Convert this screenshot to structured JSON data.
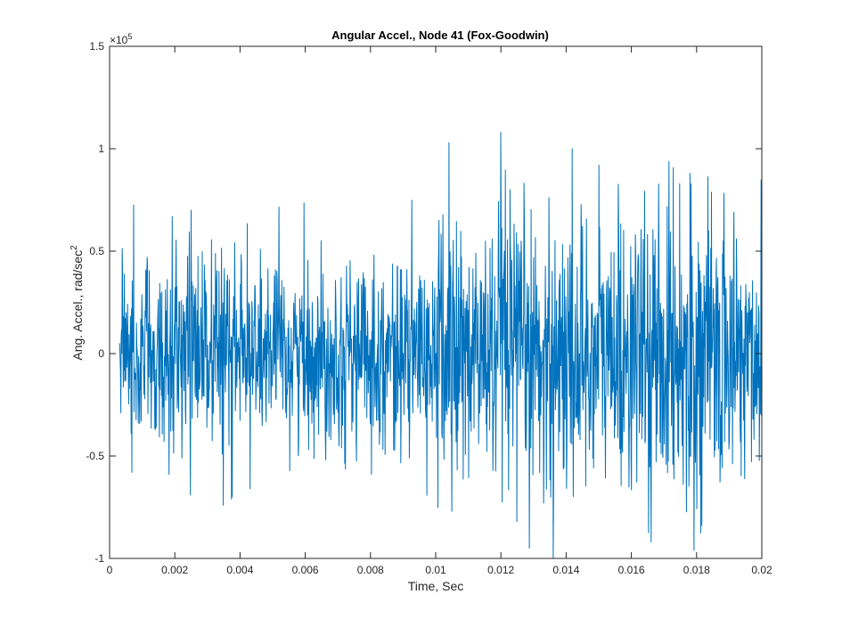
{
  "chart_data": {
    "type": "line",
    "title": "Angular Accel., Node 41 (Fox-Goodwin)",
    "xlabel": "Time, Sec",
    "ylabel_main": "Ang. Accel., rad/sec",
    "ylabel_superscript": "2",
    "xlim": [
      0,
      0.02
    ],
    "ylim": [
      -100000,
      150000
    ],
    "exponent_label": {
      "base": "×10",
      "power": "5"
    },
    "x_ticks": [
      {
        "value": 0,
        "label": "0"
      },
      {
        "value": 0.002,
        "label": "0.002"
      },
      {
        "value": 0.004,
        "label": "0.004"
      },
      {
        "value": 0.006,
        "label": "0.006"
      },
      {
        "value": 0.008,
        "label": "0.008"
      },
      {
        "value": 0.01,
        "label": "0.01"
      },
      {
        "value": 0.012,
        "label": "0.012"
      },
      {
        "value": 0.014,
        "label": "0.014"
      },
      {
        "value": 0.016,
        "label": "0.016"
      },
      {
        "value": 0.018,
        "label": "0.018"
      },
      {
        "value": 0.02,
        "label": "0.02"
      }
    ],
    "y_ticks": [
      {
        "value": -100000,
        "label": "-1"
      },
      {
        "value": -50000,
        "label": "-0.5"
      },
      {
        "value": 0,
        "label": "0"
      },
      {
        "value": 50000,
        "label": "0.5"
      },
      {
        "value": 100000,
        "label": "1"
      },
      {
        "value": 150000,
        "label": "1.5"
      }
    ],
    "grid": false,
    "series": [
      {
        "name": "Angular acceleration",
        "color": "#0072BD",
        "x_start": 0.0003,
        "x_end": 0.02,
        "point_count": 1800,
        "approx_rms": 22000,
        "approx_rms_late": 33000,
        "peaks": [
          {
            "x": 0.0004,
            "y": 38000
          },
          {
            "x": 0.0007,
            "y": -58000
          },
          {
            "x": 0.0025,
            "y": 70000
          },
          {
            "x": 0.0025,
            "y": -69000
          },
          {
            "x": 0.0043,
            "y": -66000
          },
          {
            "x": 0.0104,
            "y": 103000
          },
          {
            "x": 0.0105,
            "y": -77000
          },
          {
            "x": 0.012,
            "y": 108000
          },
          {
            "x": 0.0125,
            "y": -82000
          },
          {
            "x": 0.0136,
            "y": -100000
          },
          {
            "x": 0.015,
            "y": 92000
          },
          {
            "x": 0.0166,
            "y": -92000
          },
          {
            "x": 0.0178,
            "y": 88000
          },
          {
            "x": 0.0179,
            "y": -96000
          }
        ]
      }
    ]
  }
}
